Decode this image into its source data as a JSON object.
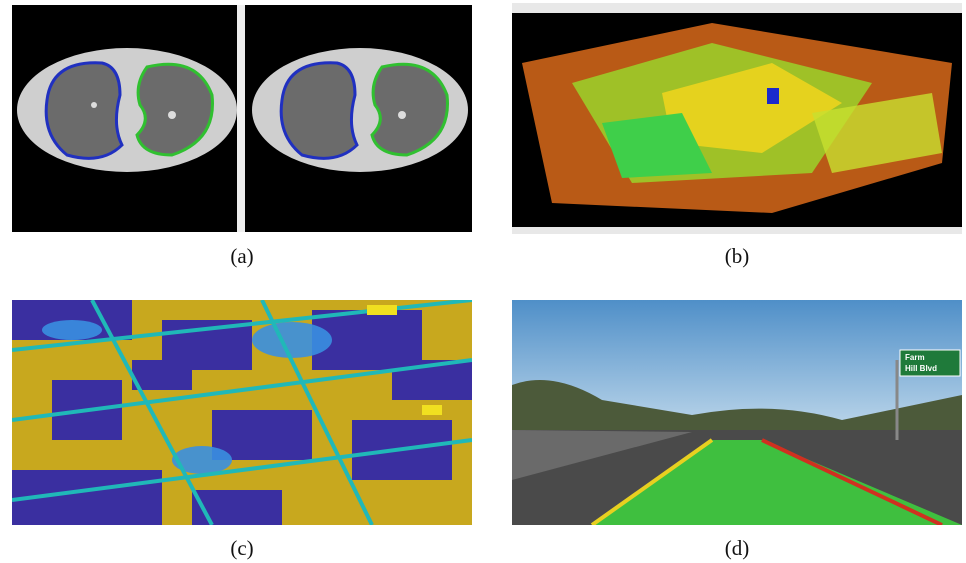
{
  "figure": {
    "panels": [
      {
        "caption": "(a)"
      },
      {
        "caption": "(b)"
      },
      {
        "caption": "(c)"
      },
      {
        "caption": "(d)",
        "sign_lines": [
          "Farm",
          "Hill Blvd"
        ]
      }
    ]
  }
}
